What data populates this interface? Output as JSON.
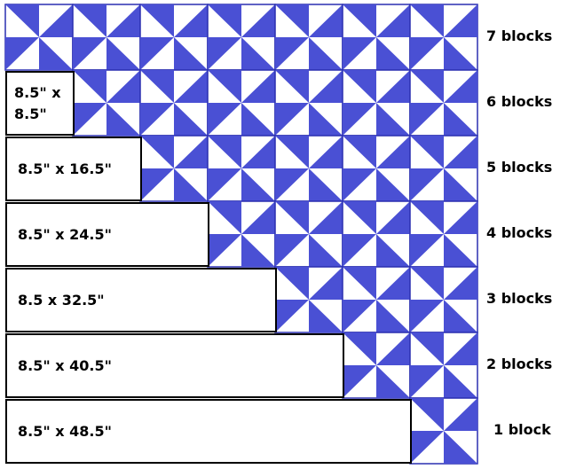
{
  "rows": [
    {
      "size": null,
      "count": "7 blocks"
    },
    {
      "size": "8.5\" x 8.5\"",
      "count": "6 blocks"
    },
    {
      "size": "8.5\" x 16.5\"",
      "count": "5 blocks"
    },
    {
      "size": "8.5\" x 24.5\"",
      "count": "4 blocks"
    },
    {
      "size": "8.5 x 32.5\"",
      "count": "3 blocks"
    },
    {
      "size": "8.5\" x 40.5\"",
      "count": "2 blocks"
    },
    {
      "size": "8.5\" x 48.5\"",
      "count": "1 block"
    }
  ]
}
